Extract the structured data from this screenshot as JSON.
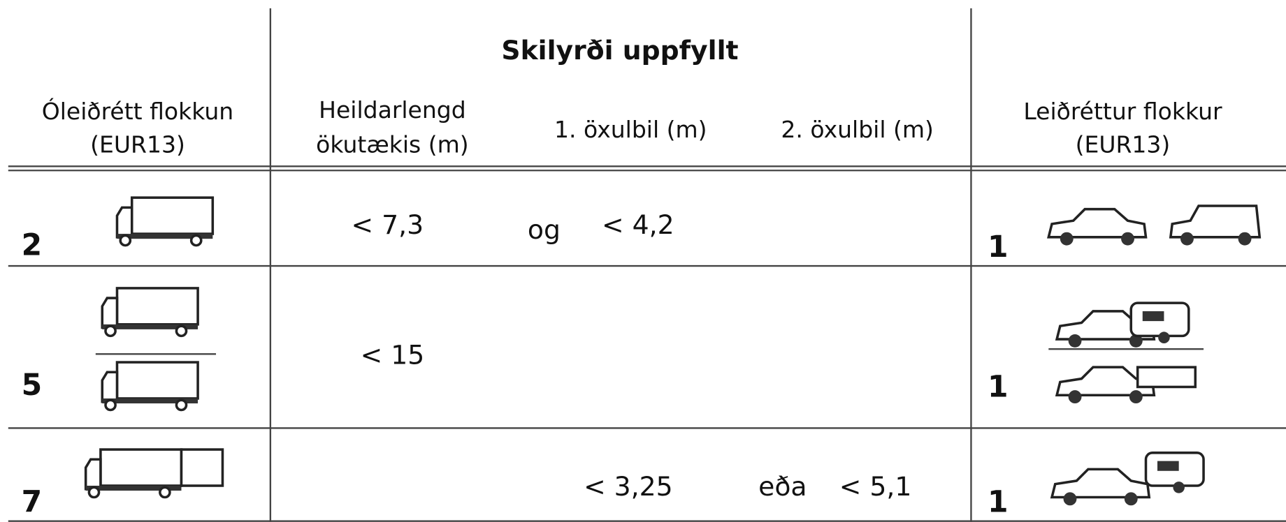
{
  "header": {
    "title": "Skilyrði uppfyllt",
    "columns": [
      [
        "Óleiðrétt flokkun",
        "(EUR13)"
      ],
      [
        "Heildarlengd",
        "ökutækis (m)"
      ],
      [
        "1. öxulbil (m)"
      ],
      [
        "2. öxulbil (m)"
      ],
      [
        "Leiðréttur flokkur",
        "(EUR13)"
      ]
    ]
  },
  "rows": [
    {
      "class": "2",
      "length": "< 7,3",
      "axle1_conj": "og",
      "axle1": "< 4,2",
      "corrected": "1"
    },
    {
      "class": "5",
      "length": "< 15",
      "corrected": "1"
    },
    {
      "class": "7",
      "axle1": "< 3,25",
      "axle2_conj": "eða",
      "axle2": "< 5,1",
      "corrected": "1"
    }
  ]
}
